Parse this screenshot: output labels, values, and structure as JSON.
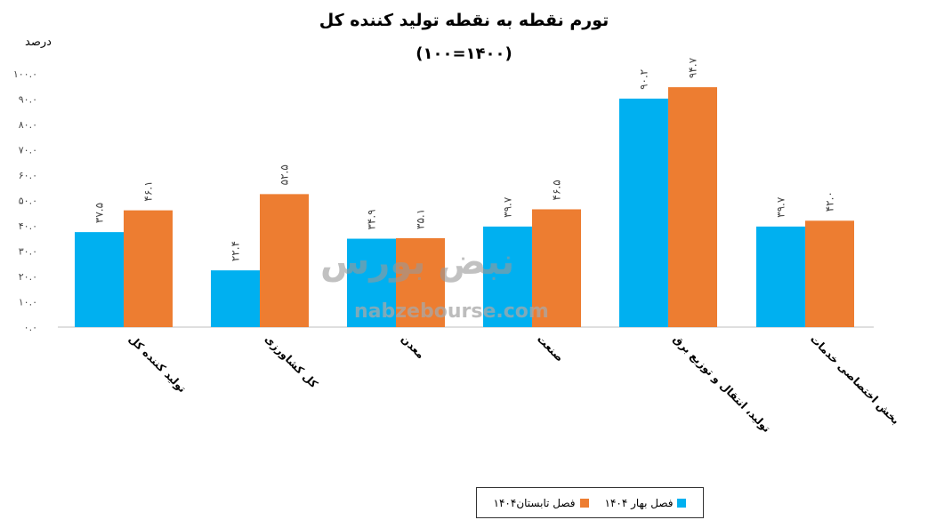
{
  "chart_data": {
    "type": "bar",
    "title": "تورم نقطه به نقطه تولید کننده کل",
    "subtitle": "(۱۴۰۰=۱۰۰)",
    "ylabel": "درصد",
    "xlabel": "",
    "ylim": [
      0,
      100
    ],
    "yticks": [
      0,
      10,
      20,
      30,
      40,
      50,
      60,
      70,
      80,
      90,
      100
    ],
    "ytick_labels": [
      "۰.۰",
      "۱۰.۰",
      "۲۰.۰",
      "۳۰.۰",
      "۴۰.۰",
      "۵۰.۰",
      "۶۰.۰",
      "۷۰.۰",
      "۸۰.۰",
      "۹۰.۰",
      "۱۰۰.۰"
    ],
    "categories": [
      "تولید کننده کل",
      "کل کشاورزی",
      "معدن",
      "صنعت",
      "تولید، انتقال و توزیع برق",
      "بخش اختصاصی خدمات"
    ],
    "series": [
      {
        "name": "فصل بهار ۱۴۰۴",
        "color": "#00b0f0",
        "values": [
          37.5,
          22.4,
          34.9,
          39.7,
          90.2,
          39.7
        ],
        "labels": [
          "۳۷.۵",
          "۲۲.۴",
          "۳۴.۹",
          "۳۹.۷",
          "۹۰.۲",
          "۳۹.۷"
        ]
      },
      {
        "name": "فصل تابستان۱۴۰۴",
        "color": "#ed7d31",
        "values": [
          46.1,
          52.5,
          35.1,
          46.5,
          94.7,
          42.0
        ],
        "labels": [
          "۴۶.۱",
          "۵۲.۵",
          "۳۵.۱",
          "۴۶.۵",
          "۹۴.۷",
          "۴۲.۰"
        ]
      }
    ],
    "grid": false,
    "legend": "bottom"
  },
  "watermark": {
    "text": "nabzebourse.com",
    "logo": "نبض بورس"
  }
}
